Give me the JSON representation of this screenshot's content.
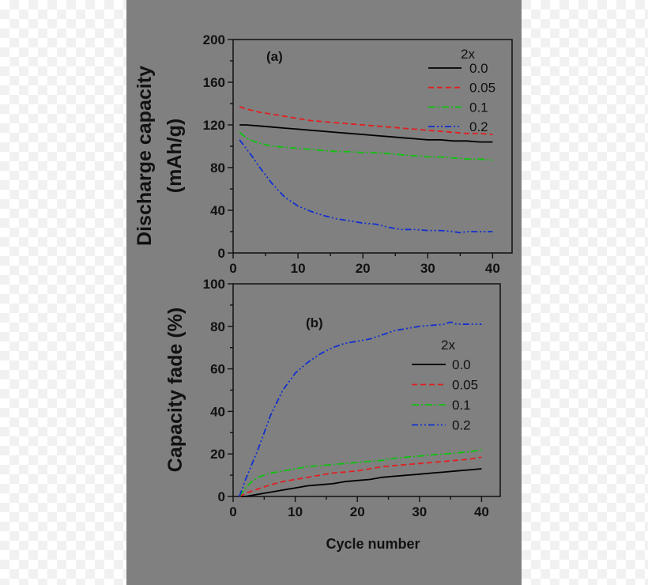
{
  "chart_data": [
    {
      "type": "line",
      "panel_label": "(a)",
      "ylabel_line1": "Discharge capacity",
      "ylabel_line2": "(mAh/g)",
      "xlabel": "",
      "xlim": [
        0,
        43
      ],
      "ylim": [
        0,
        200
      ],
      "xticks": [
        0,
        10,
        20,
        30,
        40
      ],
      "yticks": [
        0,
        40,
        80,
        120,
        160,
        200
      ],
      "grid": false,
      "legend_title": "2x",
      "legend_position": "top-right",
      "series": [
        {
          "name": "0.0",
          "color": "#000000",
          "dash": "",
          "x": [
            1,
            2,
            4,
            6,
            8,
            10,
            12,
            14,
            16,
            18,
            20,
            22,
            24,
            26,
            28,
            30,
            32,
            34,
            36,
            38,
            40
          ],
          "y": [
            120,
            120,
            119,
            118,
            117,
            116,
            115,
            114,
            113,
            112,
            111,
            110,
            109,
            108,
            107,
            106,
            106,
            105,
            105,
            104,
            104
          ]
        },
        {
          "name": "0.05",
          "color": "#e02020",
          "dash": "7,4",
          "x": [
            1,
            2,
            4,
            6,
            8,
            10,
            12,
            14,
            16,
            18,
            20,
            22,
            24,
            26,
            28,
            30,
            32,
            34,
            36,
            38,
            40
          ],
          "y": [
            137,
            135,
            132,
            130,
            128,
            126,
            124,
            123,
            122,
            121,
            120,
            119,
            118,
            117,
            116,
            115,
            114,
            113,
            112,
            112,
            111
          ]
        },
        {
          "name": "0.1",
          "color": "#10c010",
          "dash": "9,3,2,3",
          "x": [
            1,
            2,
            3,
            4,
            6,
            8,
            10,
            12,
            14,
            16,
            18,
            20,
            22,
            24,
            26,
            28,
            30,
            32,
            34,
            36,
            38,
            40
          ],
          "y": [
            113,
            108,
            105,
            103,
            100,
            99,
            98,
            97,
            96,
            95,
            95,
            94,
            94,
            93,
            92,
            91,
            90,
            90,
            89,
            88,
            88,
            87
          ]
        },
        {
          "name": "0.2",
          "color": "#1030d0",
          "dash": "8,3,2,3,2,3",
          "x": [
            1,
            2,
            3,
            4,
            5,
            6,
            8,
            10,
            12,
            14,
            16,
            18,
            20,
            22,
            24,
            26,
            28,
            30,
            32,
            34,
            35,
            36,
            38,
            40
          ],
          "y": [
            106,
            98,
            90,
            81,
            73,
            65,
            52,
            44,
            39,
            35,
            32,
            30,
            28,
            27,
            24,
            22,
            22,
            21,
            21,
            20,
            19,
            20,
            20,
            20
          ]
        }
      ]
    },
    {
      "type": "line",
      "panel_label": "(b)",
      "ylabel": "Capacity fade (%)",
      "xlabel": "Cycle number",
      "xlim": [
        0,
        43
      ],
      "ylim": [
        0,
        100
      ],
      "xticks": [
        0,
        10,
        20,
        30,
        40
      ],
      "yticks": [
        0,
        20,
        40,
        60,
        80,
        100
      ],
      "grid": false,
      "legend_title": "2x",
      "legend_position": "center-right",
      "series": [
        {
          "name": "0.0",
          "color": "#000000",
          "dash": "",
          "x": [
            1,
            2,
            4,
            6,
            8,
            10,
            12,
            14,
            16,
            18,
            20,
            22,
            24,
            26,
            28,
            30,
            32,
            34,
            36,
            38,
            40
          ],
          "y": [
            0,
            0,
            1,
            2,
            3,
            4,
            5,
            5.5,
            6,
            7,
            7.5,
            8,
            9,
            9.5,
            10,
            10.5,
            11,
            11.5,
            12,
            12.5,
            13
          ]
        },
        {
          "name": "0.05",
          "color": "#e02020",
          "dash": "7,4",
          "x": [
            1,
            2,
            4,
            6,
            8,
            10,
            12,
            14,
            16,
            18,
            20,
            22,
            24,
            26,
            28,
            30,
            32,
            34,
            36,
            38,
            40
          ],
          "y": [
            0,
            1.5,
            3.5,
            5.5,
            7,
            8,
            9,
            10,
            11,
            11.5,
            12,
            13,
            14,
            14.5,
            15,
            15.5,
            16,
            16.5,
            17,
            17.5,
            18.5
          ]
        },
        {
          "name": "0.1",
          "color": "#10c010",
          "dash": "9,3,2,3",
          "x": [
            1,
            2,
            3,
            4,
            6,
            8,
            10,
            12,
            14,
            16,
            18,
            20,
            22,
            24,
            26,
            28,
            30,
            32,
            34,
            36,
            38,
            40
          ],
          "y": [
            0,
            4,
            7,
            9,
            11,
            12,
            13,
            14,
            14.5,
            15,
            15.5,
            16,
            16.5,
            17,
            18,
            18.5,
            19,
            19.5,
            20,
            20.5,
            21,
            22
          ]
        },
        {
          "name": "0.2",
          "color": "#1030d0",
          "dash": "8,3,2,3,2,3",
          "x": [
            1,
            2,
            3,
            4,
            5,
            6,
            8,
            10,
            12,
            14,
            16,
            18,
            20,
            22,
            24,
            26,
            28,
            30,
            32,
            34,
            35,
            36,
            38,
            40
          ],
          "y": [
            0,
            8,
            15,
            22,
            30,
            38,
            50,
            58,
            63,
            67,
            70,
            72,
            73,
            74,
            76,
            78,
            79,
            80,
            80.5,
            81,
            82,
            81,
            81,
            81
          ]
        }
      ]
    }
  ]
}
